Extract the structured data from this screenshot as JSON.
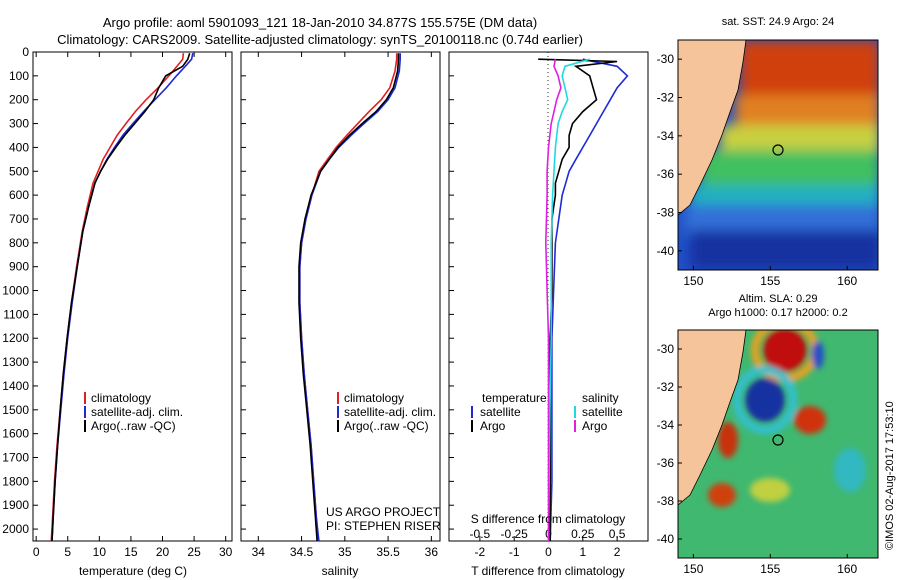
{
  "header": {
    "line1": "Argo profile: aoml 5901093_121 18-Jan-2010 34.877S 155.575E (DM data)",
    "line2": "Climatology: CARS2009. Satellite-adjusted climatology: synTS_20100118.nc (0.74d earlier)"
  },
  "colors": {
    "climatology": "#e02020",
    "satellite": "#1f2ad6",
    "argo": "#000000",
    "sat_s": "#22d8e0",
    "argo_s": "#e020e0",
    "land": "#f5c49a"
  },
  "credit": {
    "project": "US ARGO PROJECT",
    "pi": "PI: STEPHEN RISER",
    "imos": "©IMOS 02-Aug-2017 17:53:10"
  },
  "chart_data": [
    {
      "type": "line",
      "title": "",
      "xlabel": "temperature (deg C)",
      "ylabel": "",
      "xlim": [
        -0.5,
        31
      ],
      "ylim": [
        2050,
        0
      ],
      "xticks": [
        0,
        5,
        10,
        15,
        20,
        25,
        30
      ],
      "yticks": [
        0,
        100,
        200,
        300,
        400,
        500,
        600,
        700,
        800,
        900,
        1000,
        1100,
        1200,
        1300,
        1400,
        1500,
        1600,
        1700,
        1800,
        1900,
        2000
      ],
      "legend": [
        "climatology",
        "satellite-adj. clim.",
        "Argo(..raw -QC)"
      ],
      "series": [
        {
          "name": "climatology",
          "color": "#e02020",
          "x": [
            23.3,
            23.2,
            22.3,
            21.0,
            19.3,
            17.4,
            15.7,
            14.2,
            12.8,
            11.7,
            10.6,
            9.8,
            9.0,
            8.1,
            7.3,
            6.4,
            5.6,
            4.9,
            4.3,
            3.8,
            3.3,
            2.9,
            2.6,
            2.4
          ],
          "y": [
            5,
            30,
            60,
            100,
            150,
            200,
            250,
            300,
            350,
            400,
            450,
            500,
            550,
            650,
            750,
            900,
            1050,
            1200,
            1350,
            1500,
            1650,
            1800,
            1950,
            2050
          ]
        },
        {
          "name": "satellite-adj. clim.",
          "color": "#1f2ad6",
          "x": [
            24.8,
            24.6,
            23.6,
            22.2,
            20.6,
            18.8,
            17.0,
            15.3,
            13.7,
            12.4,
            11.2,
            10.2,
            9.3,
            8.3,
            7.4,
            6.5,
            5.7,
            5.0,
            4.4,
            3.9,
            3.4,
            3.0,
            2.7,
            2.5
          ],
          "y": [
            5,
            30,
            60,
            100,
            150,
            200,
            250,
            300,
            350,
            400,
            450,
            500,
            550,
            650,
            750,
            900,
            1050,
            1200,
            1350,
            1500,
            1650,
            1800,
            1950,
            2050
          ]
        },
        {
          "name": "Argo(..raw -QC)",
          "color": "#000000",
          "x": [
            24.3,
            24.0,
            23.2,
            20.5,
            19.4,
            18.6,
            17.2,
            15.6,
            14.0,
            12.6,
            11.3,
            10.2,
            9.3,
            8.3,
            7.4,
            6.5,
            5.6,
            4.9,
            4.3,
            3.8,
            3.4,
            3.0,
            2.7,
            2.5
          ],
          "y": [
            5,
            30,
            60,
            100,
            150,
            200,
            250,
            300,
            350,
            400,
            450,
            500,
            550,
            650,
            750,
            900,
            1050,
            1200,
            1350,
            1500,
            1650,
            1800,
            1950,
            2050
          ]
        }
      ]
    },
    {
      "type": "line",
      "title": "",
      "xlabel": "salinity",
      "ylabel": "",
      "xlim": [
        33.8,
        36.1
      ],
      "ylim": [
        2050,
        0
      ],
      "xticks": [
        34,
        34.5,
        35,
        35.5,
        36
      ],
      "yticks": [],
      "legend": [
        "climatology",
        "satellite-adj. clim.",
        "Argo(..raw -QC)"
      ],
      "credit_lines": [
        "US ARGO PROJECT",
        "PI: STEPHEN RISER"
      ],
      "series": [
        {
          "name": "climatology",
          "color": "#e02020",
          "x": [
            35.6,
            35.6,
            35.58,
            35.52,
            35.42,
            35.28,
            35.15,
            35.02,
            34.9,
            34.8,
            34.7,
            34.62,
            34.55,
            34.5,
            34.48,
            34.48,
            34.5,
            34.53,
            34.57,
            34.61,
            34.64,
            34.67,
            34.69
          ],
          "y": [
            5,
            30,
            80,
            150,
            200,
            250,
            300,
            350,
            400,
            450,
            500,
            600,
            700,
            800,
            900,
            1050,
            1200,
            1350,
            1500,
            1650,
            1800,
            1950,
            2050
          ]
        },
        {
          "name": "satellite-adj. clim.",
          "color": "#1f2ad6",
          "x": [
            35.64,
            35.64,
            35.63,
            35.58,
            35.5,
            35.38,
            35.22,
            35.07,
            34.93,
            34.82,
            34.72,
            34.62,
            34.55,
            34.5,
            34.48,
            34.48,
            34.5,
            34.53,
            34.57,
            34.61,
            34.64,
            34.67,
            34.7
          ],
          "y": [
            5,
            30,
            80,
            150,
            200,
            250,
            300,
            350,
            400,
            450,
            500,
            600,
            700,
            800,
            900,
            1050,
            1200,
            1350,
            1500,
            1650,
            1800,
            1950,
            2050
          ]
        },
        {
          "name": "Argo(..raw -QC)",
          "color": "#000000",
          "x": [
            35.62,
            35.62,
            35.61,
            35.56,
            35.48,
            35.36,
            35.2,
            35.05,
            34.92,
            34.82,
            34.72,
            34.61,
            34.54,
            34.49,
            34.47,
            34.47,
            34.49,
            34.52,
            34.56,
            34.6,
            34.63,
            34.66,
            34.68
          ],
          "y": [
            5,
            30,
            80,
            150,
            200,
            250,
            300,
            350,
            400,
            450,
            500,
            600,
            700,
            800,
            900,
            1050,
            1200,
            1350,
            1500,
            1650,
            1800,
            1950,
            2050
          ]
        }
      ]
    },
    {
      "type": "line",
      "title": "",
      "xlabel": "T difference from climatology",
      "xlabel_top": "S difference from climatology",
      "xlim": [
        -2.9,
        2.9
      ],
      "ylim": [
        2050,
        0
      ],
      "xticks": [
        -2,
        -1,
        0,
        1,
        2
      ],
      "xticks_top": [
        -0.5,
        -0.25,
        0,
        0.25,
        0.5
      ],
      "xticklabels_top": [
        "-0.5",
        "-0.25",
        "0",
        "0.25",
        "0.5"
      ],
      "legend_temperature": {
        "heading": "temperature",
        "items": [
          "satellite",
          "Argo"
        ]
      },
      "legend_salinity": {
        "heading": "salinity",
        "items": [
          "satellite",
          "Argo"
        ]
      },
      "series": [
        {
          "name": "T satellite",
          "color": "#1f2ad6",
          "x": [
            1.0,
            1.3,
            2.0,
            2.3,
            2.0,
            1.8,
            1.6,
            1.4,
            1.2,
            1.0,
            0.8,
            0.6,
            0.5,
            0.4,
            0.3,
            0.2,
            0.15,
            0.1,
            0.1,
            0.1,
            0.05
          ],
          "y": [
            30,
            40,
            60,
            100,
            150,
            200,
            250,
            300,
            350,
            400,
            450,
            500,
            550,
            600,
            700,
            800,
            1000,
            1200,
            1500,
            1800,
            2050
          ]
        },
        {
          "name": "T Argo",
          "color": "#000000",
          "x": [
            -0.3,
            2.0,
            0.8,
            1.2,
            1.3,
            1.4,
            1.0,
            0.7,
            0.6,
            0.6,
            0.4,
            0.3,
            0.2,
            0.2,
            0.1,
            0.1,
            0.1,
            0.05,
            0.05,
            0.05,
            0.05
          ],
          "y": [
            30,
            40,
            60,
            100,
            150,
            200,
            250,
            300,
            350,
            400,
            450,
            500,
            550,
            600,
            700,
            800,
            1000,
            1200,
            1500,
            1800,
            2050
          ]
        },
        {
          "name": "S satellite",
          "color": "#22d8e0",
          "x": [
            0.3,
            0.12,
            0.1,
            0.12,
            0.14,
            0.1,
            0.07,
            0.05,
            0.04,
            0.03,
            0.02,
            0.02,
            0.02,
            0.01,
            0.0
          ],
          "y": [
            30,
            60,
            100,
            150,
            200,
            250,
            300,
            400,
            500,
            600,
            800,
            1000,
            1200,
            1500,
            2050
          ]
        },
        {
          "name": "S Argo",
          "color": "#e020e0",
          "x": [
            0.05,
            0.04,
            0.07,
            0.09,
            0.06,
            0.04,
            0.02,
            0.0,
            -0.01,
            -0.01,
            -0.02,
            -0.01,
            0.0,
            0.0
          ],
          "y": [
            30,
            60,
            100,
            150,
            200,
            250,
            300,
            400,
            500,
            600,
            800,
            1000,
            1200,
            2050
          ]
        }
      ]
    },
    {
      "type": "heatmap",
      "title": "sat. SST: 24.9 Argo: 24",
      "xlim": [
        149,
        162
      ],
      "ylim": [
        -41,
        -29
      ],
      "xticks": [
        150,
        155,
        160
      ],
      "yticks": [
        -30,
        -32,
        -34,
        -36,
        -38,
        -40
      ],
      "marker": {
        "lon": 155.575,
        "lat": -34.877
      }
    },
    {
      "type": "heatmap",
      "title": "Altim. SLA: 0.29",
      "subtitle": "Argo h1000: 0.17 h2000: 0.2",
      "xlim": [
        149,
        162
      ],
      "ylim": [
        -41,
        -29
      ],
      "xticks": [
        150,
        155,
        160
      ],
      "yticks": [
        -30,
        -32,
        -34,
        -36,
        -38,
        -40
      ],
      "marker": {
        "lon": 155.575,
        "lat": -34.877
      }
    }
  ]
}
